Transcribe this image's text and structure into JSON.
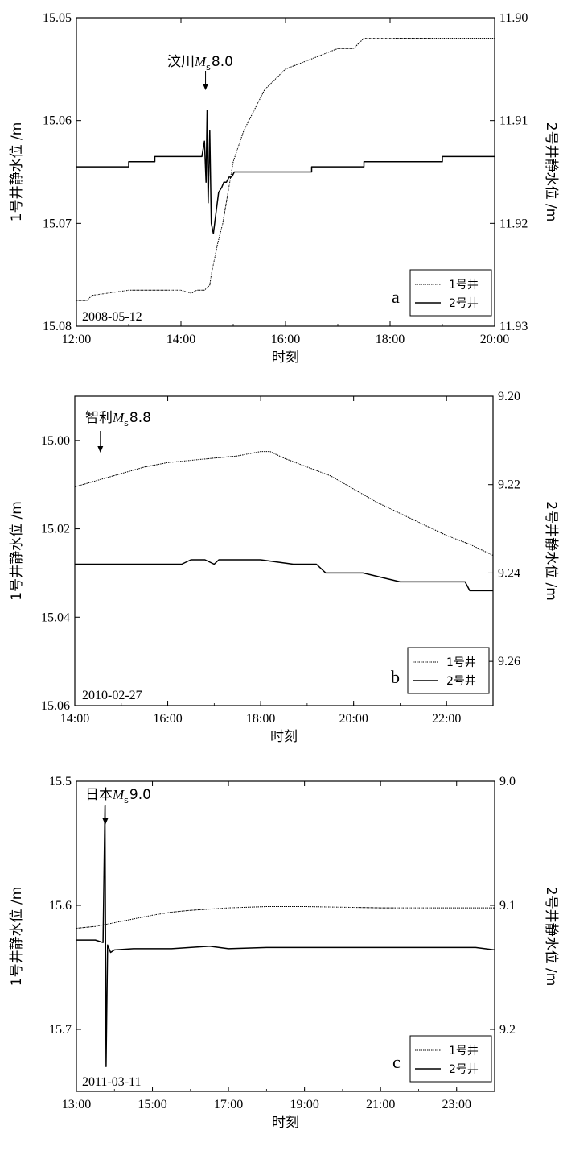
{
  "chart_data": [
    {
      "type": "line",
      "panel_label": "a",
      "date": "2008-05-12",
      "event": {
        "label": "汶川",
        "magnitude_symbol": "M",
        "magnitude_subscript": "s",
        "magnitude_value": "8.0",
        "time_h": 14.47
      },
      "xlabel": "时刻",
      "xlim": [
        12,
        20
      ],
      "xticks": [
        12,
        14,
        16,
        18,
        20
      ],
      "xtick_labels": [
        "12:00",
        "14:00",
        "16:00",
        "18:00",
        "20:00"
      ],
      "ylabel_left": "1号井静水位 /m",
      "ylim_left": [
        15.05,
        15.08
      ],
      "yticks_left": [
        15.05,
        15.06,
        15.07,
        15.08
      ],
      "ytick_labels_left": [
        "15.05",
        "15.06",
        "15.07",
        "15.08"
      ],
      "ylabel_right": "2号井静水位 /m",
      "ylim_right": [
        11.9,
        11.93
      ],
      "yticks_right": [
        11.9,
        11.91,
        11.92,
        11.93
      ],
      "ytick_labels_right": [
        "11.90",
        "11.91",
        "11.92",
        "11.93"
      ],
      "y_inverted": true,
      "legend": {
        "position": "bottom-right",
        "entries": [
          "1号井",
          "2号井"
        ]
      },
      "series": [
        {
          "name": "1号井",
          "axis": "left",
          "style": "dotted",
          "x": [
            12.0,
            12.2,
            12.3,
            13.0,
            13.5,
            14.0,
            14.2,
            14.3,
            14.45,
            14.55,
            14.58,
            14.62,
            14.7,
            14.8,
            14.9,
            15.0,
            15.2,
            15.4,
            15.6,
            15.8,
            16.0,
            16.5,
            17.0,
            17.3,
            17.5,
            18.0,
            18.5,
            19.0,
            19.5,
            19.9,
            20.0
          ],
          "y": [
            15.0775,
            15.0775,
            15.077,
            15.0765,
            15.0765,
            15.0765,
            15.0768,
            15.0765,
            15.0765,
            15.076,
            15.075,
            15.074,
            15.072,
            15.07,
            15.067,
            15.064,
            15.061,
            15.059,
            15.057,
            15.056,
            15.055,
            15.054,
            15.053,
            15.053,
            15.052,
            15.052,
            15.052,
            15.052,
            15.052,
            15.052,
            15.052
          ]
        },
        {
          "name": "2号井",
          "axis": "right",
          "style": "solid",
          "x": [
            12.0,
            13.0,
            13.0,
            13.5,
            13.5,
            14.4,
            14.45,
            14.48,
            14.5,
            14.52,
            14.55,
            14.58,
            14.62,
            14.67,
            14.72,
            14.78,
            14.82,
            14.87,
            14.92,
            14.97,
            15.02,
            15.08,
            15.15,
            16.5,
            16.5,
            17.5,
            17.5,
            19.0,
            19.0,
            20.0
          ],
          "y": [
            11.9145,
            11.9145,
            11.914,
            11.914,
            11.9135,
            11.9135,
            11.912,
            11.916,
            11.909,
            11.918,
            11.911,
            11.92,
            11.921,
            11.919,
            11.917,
            11.9165,
            11.916,
            11.916,
            11.9155,
            11.9155,
            11.915,
            11.915,
            11.915,
            11.915,
            11.9145,
            11.9145,
            11.914,
            11.914,
            11.9135,
            11.9135
          ]
        }
      ]
    },
    {
      "type": "line",
      "panel_label": "b",
      "date": "2010-02-27",
      "event": {
        "label": "智利",
        "magnitude_symbol": "M",
        "magnitude_subscript": "s",
        "magnitude_value": "8.8",
        "time_h": 14.55
      },
      "xlabel": "时刻",
      "xlim": [
        14,
        23
      ],
      "xticks": [
        14,
        16,
        18,
        20,
        22
      ],
      "xtick_labels": [
        "14:00",
        "16:00",
        "18:00",
        "20:00",
        "22:00"
      ],
      "ylabel_left": "1号井静水位 /m",
      "ylim_left": [
        14.99,
        15.06
      ],
      "yticks_left": [
        15.0,
        15.02,
        15.04,
        15.06
      ],
      "ytick_labels_left": [
        "15.00",
        "15.02",
        "15.04",
        "15.06"
      ],
      "ylabel_right": "2号井静水位 /m",
      "ylim_right": [
        9.2,
        9.27
      ],
      "yticks_right": [
        9.2,
        9.22,
        9.24,
        9.26
      ],
      "ytick_labels_right": [
        "9.20",
        "9.22",
        "9.24",
        "9.26"
      ],
      "y_inverted": true,
      "legend": {
        "position": "bottom-right",
        "entries": [
          "1号井",
          "2号井"
        ]
      },
      "series": [
        {
          "name": "1号井",
          "axis": "left",
          "style": "dotted",
          "x": [
            14.0,
            14.5,
            15.0,
            15.5,
            16.0,
            16.5,
            17.0,
            17.5,
            18.0,
            18.2,
            18.5,
            19.0,
            19.5,
            20.0,
            20.5,
            21.0,
            21.5,
            22.0,
            22.5,
            23.0
          ],
          "y": [
            15.0105,
            15.009,
            15.0075,
            15.006,
            15.005,
            15.0045,
            15.004,
            15.0035,
            15.0025,
            15.0025,
            15.004,
            15.006,
            15.008,
            15.011,
            15.014,
            15.0165,
            15.019,
            15.0215,
            15.0235,
            15.026
          ]
        },
        {
          "name": "2号井",
          "axis": "right",
          "style": "solid",
          "x": [
            14.0,
            15.2,
            15.3,
            15.5,
            15.7,
            15.9,
            16.0,
            16.1,
            16.3,
            16.5,
            16.8,
            17.0,
            17.1,
            17.3,
            18.0,
            18.7,
            18.9,
            19.05,
            19.2,
            19.4,
            20.2,
            21.0,
            22.0,
            22.4,
            22.5,
            23.0
          ],
          "y": [
            9.238,
            9.238,
            9.238,
            9.238,
            9.238,
            9.238,
            9.238,
            9.238,
            9.238,
            9.237,
            9.237,
            9.238,
            9.237,
            9.237,
            9.237,
            9.238,
            9.238,
            9.238,
            9.238,
            9.24,
            9.24,
            9.242,
            9.242,
            9.242,
            9.244,
            9.244
          ]
        }
      ]
    },
    {
      "type": "line",
      "panel_label": "c",
      "date": "2011-03-11",
      "event": {
        "label": "日本",
        "magnitude_symbol": "M",
        "magnitude_subscript": "s",
        "magnitude_value": "9.0",
        "time_h": 13.76
      },
      "xlabel": "时刻",
      "xlim": [
        13,
        24
      ],
      "xticks": [
        13,
        15,
        17,
        19,
        21,
        23
      ],
      "xtick_labels": [
        "13:00",
        "15:00",
        "17:00",
        "19:00",
        "21:00",
        "23:00"
      ],
      "ylabel_left": "1号井静水位 /m",
      "ylim_left": [
        15.5,
        15.75
      ],
      "yticks_left": [
        15.5,
        15.6,
        15.7
      ],
      "ytick_labels_left": [
        "15.5",
        "15.6",
        "15.7"
      ],
      "ylabel_right": "2号井静水位 /m",
      "ylim_right": [
        9.0,
        9.25
      ],
      "yticks_right": [
        9.0,
        9.1,
        9.2
      ],
      "ytick_labels_right": [
        "9.0",
        "9.1",
        "9.2"
      ],
      "y_inverted": true,
      "legend": {
        "position": "bottom-right",
        "entries": [
          "1号井",
          "2号井"
        ]
      },
      "series": [
        {
          "name": "1号井",
          "axis": "left",
          "style": "dotted",
          "x": [
            13.0,
            13.5,
            14.0,
            14.5,
            15.0,
            15.5,
            16.0,
            17.0,
            18.0,
            19.0,
            20.0,
            21.0,
            22.0,
            22.8,
            23.0,
            23.2,
            23.5,
            24.0
          ],
          "y": [
            15.6185,
            15.617,
            15.614,
            15.611,
            15.608,
            15.6055,
            15.604,
            15.602,
            15.601,
            15.601,
            15.6015,
            15.602,
            15.602,
            15.602,
            15.602,
            15.602,
            15.602,
            15.602
          ]
        },
        {
          "name": "2号井",
          "axis": "right",
          "style": "solid",
          "x": [
            13.0,
            13.5,
            13.7,
            13.75,
            13.78,
            13.82,
            13.9,
            14.0,
            14.5,
            15.5,
            16.5,
            17.0,
            18.0,
            19.0,
            20.0,
            21.0,
            22.0,
            23.0,
            23.5,
            24.0
          ],
          "y": [
            9.128,
            9.128,
            9.13,
            9.02,
            9.23,
            9.132,
            9.138,
            9.136,
            9.135,
            9.135,
            9.133,
            9.135,
            9.134,
            9.134,
            9.134,
            9.134,
            9.134,
            9.134,
            9.134,
            9.136
          ]
        }
      ]
    }
  ]
}
